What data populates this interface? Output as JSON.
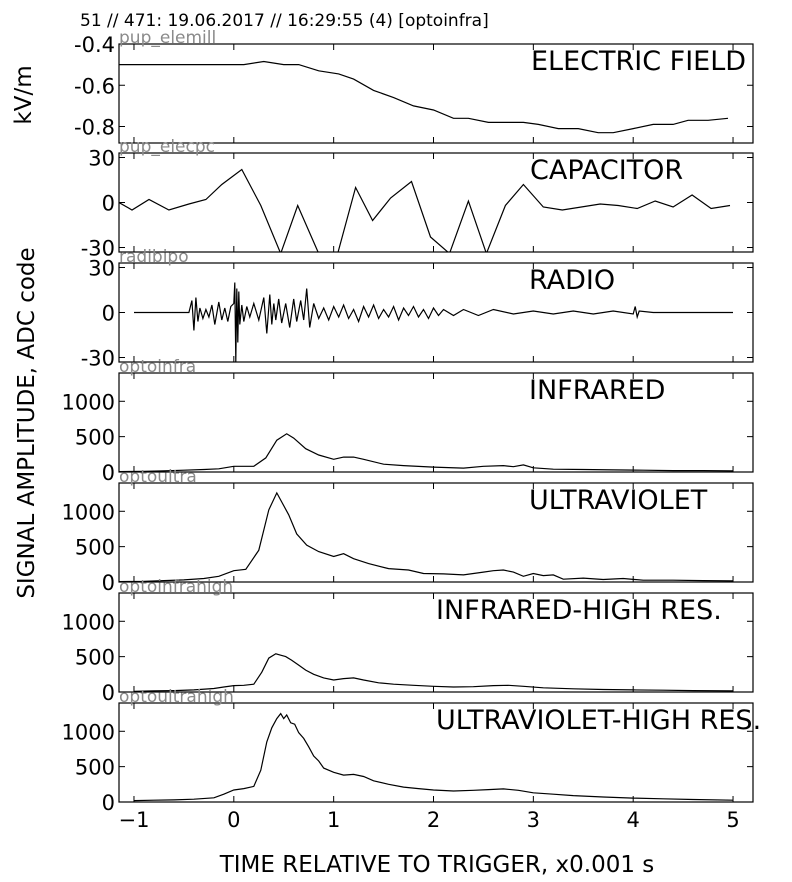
{
  "header": "51 // 471:   19.06.2017 // 16:29:55 (4)  [optoinfra]",
  "xlabel": "TIME RELATIVE TO TRIGGER,   x0.001 s",
  "ylabel_top": "kV/m",
  "ylabel_main": "SIGNAL AMPLITUDE,  ADC code",
  "chart_data": [
    {
      "type": "line",
      "title": "ELECTRIC FIELD",
      "corner_label": "pup_elemill",
      "xlim": [
        -1.15,
        5.2
      ],
      "ylim": [
        -0.88,
        -0.4
      ],
      "yticks": [
        -0.4,
        -0.6,
        -0.8
      ],
      "ytick_labels": [
        "-0.4",
        "-0.6",
        "-0.8"
      ],
      "x": [
        -1.15,
        -0.9,
        -0.6,
        -0.3,
        0.0,
        0.1,
        0.3,
        0.5,
        0.65,
        0.85,
        1.05,
        1.2,
        1.4,
        1.6,
        1.8,
        2.0,
        2.2,
        2.35,
        2.55,
        2.7,
        2.9,
        3.05,
        3.25,
        3.45,
        3.65,
        3.8,
        4.0,
        4.2,
        4.4,
        4.55,
        4.75,
        4.95
      ],
      "y": [
        -0.5,
        -0.5,
        -0.5,
        -0.5,
        -0.5,
        -0.5,
        -0.485,
        -0.5,
        -0.5,
        -0.53,
        -0.545,
        -0.57,
        -0.625,
        -0.66,
        -0.7,
        -0.72,
        -0.76,
        -0.76,
        -0.78,
        -0.78,
        -0.78,
        -0.79,
        -0.81,
        -0.81,
        -0.83,
        -0.83,
        -0.81,
        -0.79,
        -0.79,
        -0.77,
        -0.77,
        -0.76
      ]
    },
    {
      "type": "line",
      "title": "CAPACITOR",
      "corner_label": "pup_elecpc",
      "xlim": [
        -1.15,
        5.2
      ],
      "ylim": [
        -33,
        33
      ],
      "yticks": [
        30,
        0,
        -30
      ],
      "ytick_labels": [
        "30",
        "0",
        "-30"
      ],
      "x": [
        -1.15,
        -1.02,
        -0.85,
        -0.65,
        -0.45,
        -0.28,
        -0.12,
        0.08,
        0.27,
        0.47,
        0.64,
        0.85,
        1.04,
        1.22,
        1.39,
        1.57,
        1.78,
        1.97,
        2.16,
        2.35,
        2.53,
        2.72,
        2.9,
        3.1,
        3.29,
        3.48,
        3.67,
        3.85,
        4.04,
        4.22,
        4.4,
        4.59,
        4.78,
        4.97
      ],
      "y": [
        0,
        -5,
        2,
        -5,
        -1,
        2,
        12,
        22,
        -2,
        -34,
        -2,
        -34,
        -34,
        10,
        -12,
        3,
        14,
        -23,
        -34,
        1,
        -34,
        -2,
        12,
        -3,
        -5,
        -3,
        -1,
        -2,
        -4,
        1,
        -3,
        5,
        -4,
        -2
      ]
    },
    {
      "type": "line",
      "title": "RADIO",
      "corner_label": "radibipo",
      "xlim": [
        -1.15,
        5.2
      ],
      "ylim": [
        -33,
        33
      ],
      "yticks": [
        30,
        0,
        -30
      ],
      "ytick_labels": [
        "30",
        "0",
        "-30"
      ],
      "x": [
        -1.0,
        -0.7,
        -0.45,
        -0.42,
        -0.4,
        -0.38,
        -0.36,
        -0.34,
        -0.31,
        -0.28,
        -0.25,
        -0.22,
        -0.19,
        -0.15,
        -0.12,
        -0.09,
        -0.06,
        -0.03,
        0.0,
        0.01,
        0.02,
        0.03,
        0.04,
        0.05,
        0.06,
        0.08,
        0.1,
        0.13,
        0.16,
        0.2,
        0.25,
        0.3,
        0.33,
        0.36,
        0.38,
        0.4,
        0.42,
        0.45,
        0.48,
        0.52,
        0.56,
        0.6,
        0.63,
        0.67,
        0.7,
        0.73,
        0.76,
        0.8,
        0.85,
        0.9,
        0.95,
        1.0,
        1.05,
        1.1,
        1.15,
        1.2,
        1.25,
        1.3,
        1.35,
        1.4,
        1.45,
        1.5,
        1.55,
        1.6,
        1.65,
        1.7,
        1.75,
        1.8,
        1.85,
        1.9,
        1.95,
        2.0,
        2.05,
        2.1,
        2.2,
        2.3,
        2.45,
        2.6,
        2.8,
        3.0,
        3.2,
        3.4,
        3.6,
        3.8,
        4.0,
        4.02,
        4.04,
        4.06,
        4.2,
        4.5,
        4.8,
        5.0
      ],
      "y": [
        0,
        0,
        0,
        8,
        -12,
        10,
        -6,
        3,
        -4,
        2,
        -3,
        5,
        -8,
        7,
        -5,
        3,
        -6,
        4,
        6,
        20,
        -33,
        16,
        -20,
        14,
        -8,
        5,
        -6,
        4,
        -3,
        6,
        -5,
        10,
        -14,
        12,
        -8,
        6,
        -5,
        9,
        -7,
        6,
        -10,
        9,
        -6,
        8,
        -5,
        16,
        -10,
        6,
        -4,
        3,
        -5,
        4,
        -3,
        5,
        -4,
        2,
        -6,
        4,
        -3,
        5,
        -4,
        2,
        -3,
        4,
        -5,
        3,
        -2,
        4,
        -3,
        2,
        -4,
        3,
        -2,
        2,
        -2,
        2,
        -2,
        2,
        -1,
        1,
        -1,
        1,
        -1,
        1,
        -1,
        4,
        -3,
        1,
        0,
        0,
        0,
        0
      ]
    },
    {
      "type": "line",
      "title": "INFRARED",
      "corner_label": "optoinfra",
      "xlim": [
        -1.15,
        5.2
      ],
      "ylim": [
        0,
        1400
      ],
      "yticks": [
        0,
        500,
        1000
      ],
      "ytick_labels": [
        "0",
        "500",
        "1000"
      ],
      "x": [
        -1.15,
        -0.9,
        -0.7,
        -0.5,
        -0.3,
        -0.15,
        0.0,
        0.2,
        0.32,
        0.43,
        0.53,
        0.6,
        0.72,
        0.85,
        1.0,
        1.1,
        1.2,
        1.3,
        1.5,
        1.7,
        2.0,
        2.3,
        2.5,
        2.7,
        2.8,
        2.9,
        3.0,
        3.2,
        3.5,
        3.8,
        4.1,
        4.4,
        4.7,
        5.0
      ],
      "y": [
        5,
        10,
        15,
        25,
        35,
        45,
        80,
        80,
        200,
        450,
        540,
        480,
        330,
        240,
        180,
        210,
        210,
        180,
        110,
        90,
        70,
        55,
        80,
        90,
        75,
        100,
        60,
        40,
        35,
        30,
        25,
        20,
        20,
        15
      ]
    },
    {
      "type": "line",
      "title": "ULTRAVIOLET",
      "corner_label": "optoultra",
      "xlim": [
        -1.15,
        5.2
      ],
      "ylim": [
        0,
        1400
      ],
      "yticks": [
        0,
        500,
        1000
      ],
      "ytick_labels": [
        "0",
        "500",
        "1000"
      ],
      "x": [
        -1.15,
        -0.9,
        -0.7,
        -0.5,
        -0.3,
        -0.15,
        0.0,
        0.12,
        0.25,
        0.35,
        0.43,
        0.55,
        0.63,
        0.73,
        0.85,
        1.0,
        1.1,
        1.2,
        1.35,
        1.55,
        1.75,
        1.9,
        2.1,
        2.3,
        2.5,
        2.6,
        2.7,
        2.8,
        2.9,
        3.0,
        3.1,
        3.2,
        3.3,
        3.5,
        3.7,
        3.9,
        4.1,
        4.4,
        4.7,
        5.0
      ],
      "y": [
        5,
        10,
        20,
        30,
        50,
        80,
        160,
        180,
        450,
        1020,
        1260,
        950,
        680,
        520,
        430,
        360,
        400,
        330,
        260,
        190,
        170,
        120,
        115,
        100,
        140,
        160,
        170,
        140,
        80,
        120,
        90,
        100,
        40,
        55,
        35,
        50,
        25,
        25,
        20,
        15
      ]
    },
    {
      "type": "line",
      "title": "INFRARED-HIGH RES.",
      "corner_label": "optoinfrahigh",
      "xlim": [
        -1.15,
        5.2
      ],
      "ylim": [
        0,
        1400
      ],
      "yticks": [
        0,
        500,
        1000
      ],
      "ytick_labels": [
        "0",
        "500",
        "1000"
      ],
      "x": [
        -1.0,
        -0.8,
        -0.6,
        -0.4,
        -0.2,
        -0.1,
        0.0,
        0.1,
        0.2,
        0.28,
        0.35,
        0.42,
        0.47,
        0.52,
        0.58,
        0.65,
        0.72,
        0.8,
        0.9,
        1.0,
        1.1,
        1.2,
        1.3,
        1.45,
        1.6,
        1.8,
        2.0,
        2.2,
        2.4,
        2.6,
        2.75,
        2.9,
        3.1,
        3.4,
        3.7,
        4.0,
        4.3,
        4.6,
        5.0
      ],
      "y": [
        10,
        15,
        20,
        30,
        50,
        70,
        90,
        95,
        110,
        280,
        480,
        540,
        520,
        500,
        450,
        380,
        310,
        250,
        200,
        170,
        190,
        200,
        170,
        130,
        110,
        95,
        80,
        70,
        75,
        90,
        95,
        80,
        60,
        45,
        35,
        30,
        25,
        20,
        15
      ]
    },
    {
      "type": "line",
      "title": "ULTRAVIOLET-HIGH RES.",
      "corner_label": "optoultrahigh",
      "xlim": [
        -1.15,
        5.2
      ],
      "ylim": [
        0,
        1400
      ],
      "yticks": [
        0,
        500,
        1000
      ],
      "ytick_labels": [
        "0",
        "500",
        "1000"
      ],
      "x": [
        -1.0,
        -0.8,
        -0.6,
        -0.4,
        -0.2,
        -0.1,
        0.0,
        0.1,
        0.2,
        0.27,
        0.33,
        0.38,
        0.43,
        0.47,
        0.5,
        0.53,
        0.57,
        0.61,
        0.65,
        0.7,
        0.75,
        0.8,
        0.85,
        0.9,
        1.0,
        1.1,
        1.2,
        1.3,
        1.4,
        1.55,
        1.7,
        1.85,
        2.0,
        2.2,
        2.4,
        2.55,
        2.7,
        2.85,
        3.0,
        3.2,
        3.4,
        3.7,
        4.0,
        4.3,
        4.6,
        5.0
      ],
      "y": [
        20,
        25,
        30,
        40,
        60,
        110,
        170,
        190,
        220,
        450,
        850,
        1050,
        1180,
        1250,
        1180,
        1230,
        1120,
        1100,
        980,
        900,
        780,
        650,
        580,
        480,
        420,
        380,
        390,
        360,
        300,
        250,
        210,
        190,
        170,
        155,
        165,
        175,
        185,
        165,
        130,
        110,
        90,
        70,
        55,
        45,
        35,
        25
      ]
    }
  ]
}
